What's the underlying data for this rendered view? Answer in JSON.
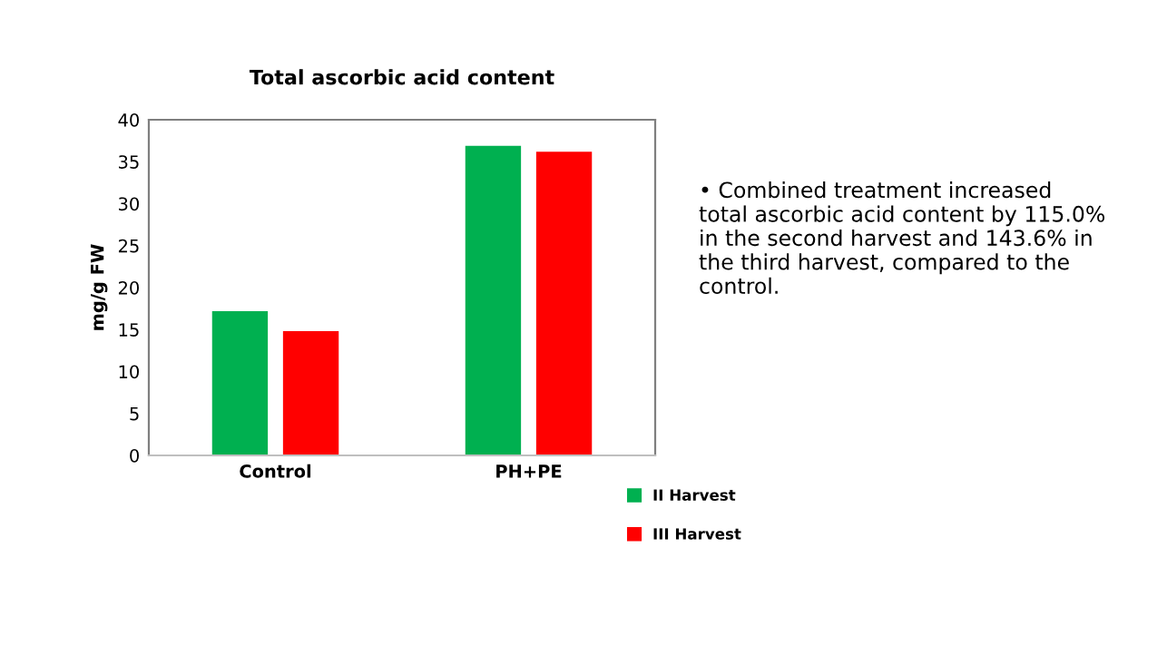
{
  "chart_data": {
    "type": "bar",
    "title": "Total ascorbic acid content",
    "ylabel": "mg/g FW",
    "categories": [
      "Control",
      "PH+PE"
    ],
    "series": [
      {
        "name": "II Harvest",
        "color": "#00b050",
        "values": [
          17.2,
          36.9
        ]
      },
      {
        "name": "III Harvest",
        "color": "#ff0000",
        "values": [
          14.8,
          36.2
        ]
      }
    ],
    "ylim": [
      0,
      40
    ],
    "yticks": [
      0,
      5,
      10,
      15,
      20,
      25,
      30,
      35,
      40
    ],
    "grid": false,
    "legend": "bottom right",
    "annotations": [
      "• Combined treatment increased total ascorbic acid content by 115.0% in the second harvest and 143.6% in the third harvest, compared to the control."
    ]
  }
}
